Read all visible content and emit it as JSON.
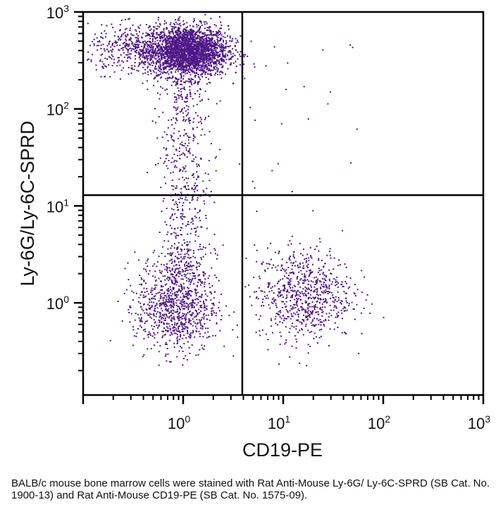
{
  "chart_data": {
    "type": "scatter",
    "scale": "log",
    "xlabel": "CD19-PE",
    "ylabel": "Ly-6G/Ly-6C-SPRD",
    "xlim": [
      0.1,
      1000
    ],
    "ylim": [
      0.112,
      1000
    ],
    "x_ticks": [
      {
        "base": "10",
        "exp": "0",
        "value": 1
      },
      {
        "base": "10",
        "exp": "1",
        "value": 10
      },
      {
        "base": "10",
        "exp": "2",
        "value": 100
      },
      {
        "base": "10",
        "exp": "3",
        "value": 1000
      }
    ],
    "y_ticks": [
      {
        "base": "10",
        "exp": "0",
        "value": 1
      },
      {
        "base": "10",
        "exp": "1",
        "value": 10
      },
      {
        "base": "10",
        "exp": "2",
        "value": 100
      },
      {
        "base": "10",
        "exp": "3",
        "value": 1000
      }
    ],
    "quadrant_gate": {
      "x": 3.9,
      "y": 12.9
    },
    "point_color": "#4e1787",
    "populations": [
      {
        "name": "Ly-6G/Ly-6C+ CD19- (granulocytes)",
        "x_center": 1.1,
        "y_center": 400,
        "x_spread_decades": 0.2,
        "y_spread_decades": 0.13,
        "count": 2600
      },
      {
        "name": "Ly-6G/Ly-6C+ low-CD19 tail",
        "x_center": 0.35,
        "y_center": 420,
        "x_spread_decades": 0.25,
        "y_spread_decades": 0.12,
        "count": 450
      },
      {
        "name": "Ly-6G/Ly-6C intermediate stream",
        "x_center": 1.0,
        "y_range": [
          2,
          200
        ],
        "x_spread_decades": 0.13,
        "count": 550
      },
      {
        "name": "double negative",
        "x_center": 0.85,
        "y_center": 0.95,
        "x_spread_decades": 0.2,
        "y_spread_decades": 0.24,
        "count": 950
      },
      {
        "name": "CD19+ B cells",
        "x_center": 16,
        "y_center": 1.25,
        "x_spread_decades": 0.24,
        "y_spread_decades": 0.24,
        "count": 750
      },
      {
        "name": "double positive (sparse)",
        "x_range": [
          4.5,
          80
        ],
        "y_range": [
          14,
          600
        ],
        "count": 22
      }
    ]
  },
  "caption": "BALB/c mouse bone marrow cells were stained with Rat Anti-Mouse Ly-6G/ Ly-6C-SPRD (SB Cat. No. 1900-13) and Rat Anti-Mouse CD19-PE (SB Cat. No. 1575-09)."
}
